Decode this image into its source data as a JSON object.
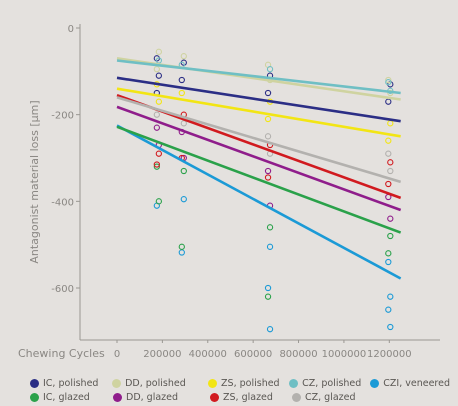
{
  "chart_data": {
    "type": "scatter",
    "ylabel": "Antagonist material loss [µm]",
    "xlabel": "Chewing Cycles",
    "xlim": [
      0,
      1300000
    ],
    "ylim": [
      -720,
      0
    ],
    "xticks": [
      0,
      200000,
      400000,
      600000,
      800000,
      1000000,
      1200000
    ],
    "yticks": [
      0,
      -200,
      -400,
      -600
    ],
    "grid": false,
    "legend_position": "bottom",
    "x_groups": [
      180000,
      290000,
      670000,
      1200000
    ],
    "series": [
      {
        "name": "IC, polished",
        "color": "#2b2e85",
        "trend": [
          [
            0,
            -115
          ],
          [
            1250000,
            -215
          ]
        ],
        "points": [
          [
            180000,
            -70
          ],
          [
            180000,
            -110
          ],
          [
            180000,
            -150
          ],
          [
            290000,
            -80
          ],
          [
            290000,
            -120
          ],
          [
            670000,
            -110
          ],
          [
            670000,
            -150
          ],
          [
            1200000,
            -130
          ],
          [
            1200000,
            -170
          ]
        ]
      },
      {
        "name": "DD, polished",
        "color": "#cfd3a0",
        "trend": [
          [
            0,
            -70
          ],
          [
            1250000,
            -165
          ]
        ],
        "points": [
          [
            180000,
            -55
          ],
          [
            180000,
            -95
          ],
          [
            290000,
            -65
          ],
          [
            670000,
            -85
          ],
          [
            670000,
            -120
          ],
          [
            1200000,
            -120
          ],
          [
            1200000,
            -150
          ]
        ]
      },
      {
        "name": "ZS, polished",
        "color": "#f2e514",
        "trend": [
          [
            0,
            -140
          ],
          [
            1250000,
            -250
          ]
        ],
        "points": [
          [
            180000,
            -130
          ],
          [
            180000,
            -170
          ],
          [
            290000,
            -150
          ],
          [
            670000,
            -170
          ],
          [
            670000,
            -210
          ],
          [
            1200000,
            -220
          ],
          [
            1200000,
            -260
          ]
        ]
      },
      {
        "name": "CZ, polished",
        "color": "#6fbfc4",
        "trend": [
          [
            0,
            -75
          ],
          [
            1250000,
            -150
          ]
        ],
        "points": [
          [
            180000,
            -75
          ],
          [
            290000,
            -85
          ],
          [
            670000,
            -95
          ],
          [
            1200000,
            -125
          ],
          [
            1200000,
            -145
          ]
        ]
      },
      {
        "name": "CZI, veneered",
        "color": "#1b9ad6",
        "trend": [
          [
            0,
            -225
          ],
          [
            1250000,
            -578
          ]
        ],
        "points": [
          [
            180000,
            -410
          ],
          [
            290000,
            -395
          ],
          [
            290000,
            -518
          ],
          [
            670000,
            -505
          ],
          [
            670000,
            -600
          ],
          [
            670000,
            -695
          ],
          [
            1200000,
            -540
          ],
          [
            1200000,
            -620
          ],
          [
            1200000,
            -650
          ],
          [
            1200000,
            -690
          ]
        ]
      },
      {
        "name": "IC, glazed",
        "color": "#2aa14a",
        "trend": [
          [
            0,
            -228
          ],
          [
            1250000,
            -472
          ]
        ],
        "points": [
          [
            180000,
            -400
          ],
          [
            180000,
            -320
          ],
          [
            290000,
            -330
          ],
          [
            290000,
            -505
          ],
          [
            670000,
            -460
          ],
          [
            670000,
            -620
          ],
          [
            1200000,
            -480
          ],
          [
            1200000,
            -520
          ]
        ]
      },
      {
        "name": "DD, glazed",
        "color": "#8f1d8b",
        "trend": [
          [
            0,
            -182
          ],
          [
            1250000,
            -420
          ]
        ],
        "points": [
          [
            180000,
            -230
          ],
          [
            180000,
            -270
          ],
          [
            290000,
            -240
          ],
          [
            290000,
            -300
          ],
          [
            670000,
            -330
          ],
          [
            670000,
            -410
          ],
          [
            1200000,
            -390
          ],
          [
            1200000,
            -440
          ]
        ]
      },
      {
        "name": "ZS, glazed",
        "color": "#d11a1f",
        "trend": [
          [
            0,
            -155
          ],
          [
            1250000,
            -392
          ]
        ],
        "points": [
          [
            180000,
            -290
          ],
          [
            180000,
            -315
          ],
          [
            290000,
            -200
          ],
          [
            290000,
            -300
          ],
          [
            670000,
            -270
          ],
          [
            670000,
            -345
          ],
          [
            1200000,
            -310
          ],
          [
            1200000,
            -360
          ]
        ]
      },
      {
        "name": "CZ, glazed",
        "color": "#b3b1ae",
        "trend": [
          [
            0,
            -160
          ],
          [
            1250000,
            -355
          ]
        ],
        "points": [
          [
            180000,
            -200
          ],
          [
            290000,
            -220
          ],
          [
            670000,
            -250
          ],
          [
            670000,
            -290
          ],
          [
            1200000,
            -290
          ],
          [
            1200000,
            -330
          ]
        ]
      }
    ]
  }
}
